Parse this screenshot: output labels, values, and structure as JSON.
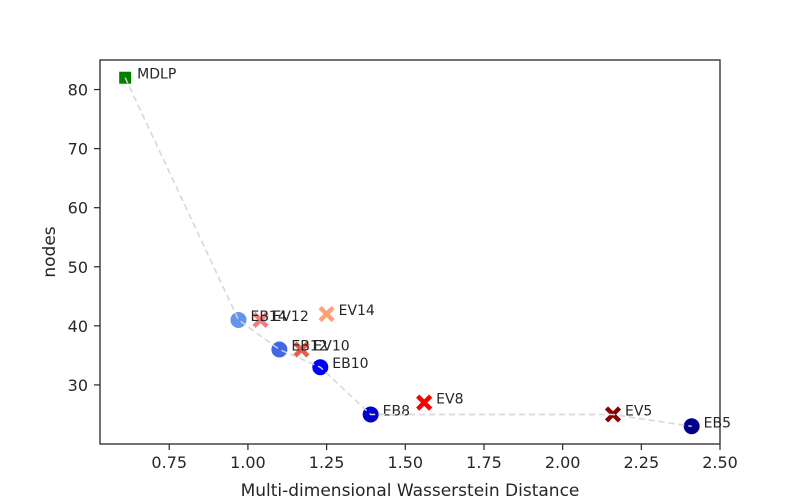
{
  "chart_data": {
    "type": "scatter",
    "title": "",
    "xlabel": "Multi-dimensional Wasserstein Distance",
    "ylabel": "nodes",
    "xlim": [
      0.53,
      2.5
    ],
    "ylim": [
      20,
      85
    ],
    "xticks": [
      "0.75",
      "1.00",
      "1.25",
      "1.50",
      "1.75",
      "2.00",
      "2.25",
      "2.50"
    ],
    "yticks": [
      "30",
      "40",
      "50",
      "60",
      "70",
      "80"
    ],
    "grid": false,
    "frontier_color": "#d9d9d9",
    "points": [
      {
        "label": "MDLP",
        "x": 0.61,
        "y": 82,
        "marker": "square",
        "color": "#008000"
      },
      {
        "label": "EB14",
        "x": 0.97,
        "y": 41,
        "marker": "circle",
        "color": "#6495ed"
      },
      {
        "label": "EV12",
        "x": 1.04,
        "y": 41,
        "marker": "cross",
        "color": "#f08080"
      },
      {
        "label": "EB12",
        "x": 1.1,
        "y": 36,
        "marker": "circle",
        "color": "#4169e1"
      },
      {
        "label": "EV10",
        "x": 1.17,
        "y": 36,
        "marker": "cross",
        "color": "#f05a4a"
      },
      {
        "label": "EB10",
        "x": 1.23,
        "y": 33,
        "marker": "circle",
        "color": "#0000ff"
      },
      {
        "label": "EV14",
        "x": 1.25,
        "y": 42,
        "marker": "cross",
        "color": "#ffa07a"
      },
      {
        "label": "EB8",
        "x": 1.39,
        "y": 25,
        "marker": "circle",
        "color": "#0000cd"
      },
      {
        "label": "EV8",
        "x": 1.56,
        "y": 27,
        "marker": "cross",
        "color": "#ff0000"
      },
      {
        "label": "EV5",
        "x": 2.16,
        "y": 25,
        "marker": "cross",
        "color": "#8b0000"
      },
      {
        "label": "EB5",
        "x": 2.41,
        "y": 23,
        "marker": "circle",
        "color": "#00008b"
      }
    ],
    "frontier": [
      {
        "x": 0.61,
        "y": 82
      },
      {
        "x": 0.97,
        "y": 41
      },
      {
        "x": 1.1,
        "y": 36
      },
      {
        "x": 1.23,
        "y": 33
      },
      {
        "x": 1.39,
        "y": 25
      },
      {
        "x": 2.16,
        "y": 25
      },
      {
        "x": 2.41,
        "y": 23
      }
    ]
  }
}
